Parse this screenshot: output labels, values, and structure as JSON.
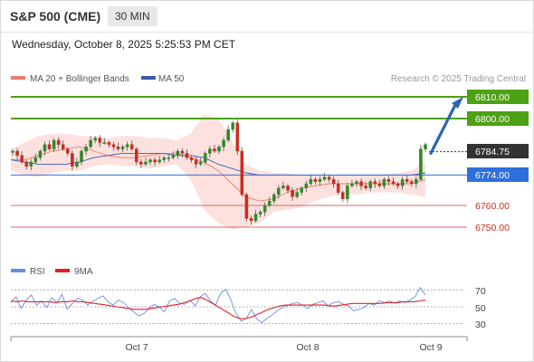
{
  "header": {
    "title": "S&P 500 (CME)",
    "timeframe": "30 MIN",
    "datetime": "Wednesday, October 8, 2025 5:25:53 PM CET"
  },
  "legend": {
    "ma20_bb": "MA 20 + Bollinger Bands",
    "ma50": "MA 50",
    "source": "Research © 2025 Trading Central",
    "rsi": "RSI",
    "rsi_ma": "9MA"
  },
  "colors": {
    "up_candle": "#2f8a2a",
    "down_candle": "#cc2b1d",
    "bollinger_fill": "#fddcd8",
    "ma20": "#e87d6a",
    "ma50": "#3c59a8",
    "resistance": "#4da114",
    "pivot": "#2f6fdc",
    "support": "#e06565",
    "current": "#333333",
    "rsi_line": "#6a8ee0",
    "rsi_ma_line": "#e0202a",
    "arrow": "#2c64b4"
  },
  "chart_data": {
    "type": "candlestick",
    "symbol": "S&P 500 (CME)",
    "timeframe": "30 MIN",
    "x_ticks": [
      "Oct 7",
      "Oct 8",
      "Oct 9"
    ],
    "y_range": [
      6745,
      6815
    ],
    "levels": [
      {
        "label": "6810.00",
        "value": 6810,
        "kind": "resistance"
      },
      {
        "label": "6800.00",
        "value": 6800,
        "kind": "resistance"
      },
      {
        "label": "6784.75",
        "value": 6784.75,
        "kind": "current"
      },
      {
        "label": "6774.00",
        "value": 6774,
        "kind": "pivot"
      },
      {
        "label": "6760.00",
        "value": 6760,
        "kind": "support"
      },
      {
        "label": "6750.00",
        "value": 6750,
        "kind": "support"
      }
    ],
    "price_path": [
      6785,
      6783,
      6780,
      6778,
      6780,
      6782,
      6785,
      6788,
      6786,
      6790,
      6788,
      6786,
      6784,
      6778,
      6780,
      6785,
      6787,
      6790,
      6791,
      6789,
      6789,
      6788,
      6787,
      6786,
      6787,
      6788,
      6786,
      6780,
      6779,
      6780,
      6781,
      6780,
      6781,
      6782,
      6782,
      6783,
      6785,
      6784,
      6782,
      6781,
      6779,
      6780,
      6784,
      6786,
      6785,
      6787,
      6790,
      6795,
      6798,
      6785,
      6765,
      6754,
      6753,
      6756,
      6757,
      6760,
      6762,
      6765,
      6768,
      6769,
      6767,
      6764,
      6766,
      6768,
      6770,
      6772,
      6771,
      6772,
      6773,
      6772,
      6770,
      6766,
      6763,
      6769,
      6770,
      6771,
      6769,
      6768,
      6771,
      6770,
      6769,
      6772,
      6771,
      6770,
      6769,
      6772,
      6771,
      6770,
      6772,
      6786,
      6788
    ],
    "ma20_path": [
      6781,
      6781,
      6783,
      6785,
      6786,
      6787,
      6785,
      6783,
      6782,
      6782,
      6783,
      6784,
      6784,
      6782,
      6780,
      6776,
      6770,
      6764,
      6762,
      6763,
      6766,
      6768,
      6769,
      6770,
      6770,
      6770,
      6770,
      6770,
      6770,
      6770,
      6772
    ],
    "bollinger_upper": [
      6786,
      6789,
      6792,
      6793,
      6793,
      6792,
      6792,
      6791,
      6792,
      6792,
      6791,
      6791,
      6790,
      6793,
      6802,
      6800,
      6790,
      6779,
      6776,
      6775,
      6775,
      6774,
      6774,
      6774,
      6774,
      6774,
      6774,
      6774,
      6775,
      6776,
      6780
    ],
    "bollinger_lower": [
      6776,
      6774,
      6773,
      6775,
      6776,
      6776,
      6778,
      6779,
      6778,
      6778,
      6777,
      6778,
      6779,
      6772,
      6758,
      6752,
      6749,
      6750,
      6752,
      6757,
      6758,
      6759,
      6762,
      6764,
      6765,
      6765,
      6766,
      6766,
      6766,
      6765,
      6764
    ],
    "ma50_path": [
      6781,
      6780,
      6779,
      6779,
      6779,
      6780,
      6782,
      6783,
      6784,
      6784,
      6784,
      6784,
      6783,
      6783,
      6782,
      6779,
      6777,
      6775,
      6774,
      6774,
      6774,
      6774,
      6774,
      6774,
      6774,
      6774,
      6774,
      6774,
      6774,
      6774,
      6775
    ],
    "arrow": {
      "from": 6784,
      "to": 6810
    },
    "rsi": {
      "ticks": [
        70,
        50,
        30
      ],
      "y_range": [
        20,
        80
      ],
      "rsi_path": [
        55,
        62,
        48,
        58,
        64,
        52,
        57,
        49,
        61,
        55,
        65,
        47,
        54,
        60,
        58,
        52,
        56,
        60,
        63,
        56,
        52,
        58,
        55,
        49,
        44,
        39,
        42,
        48,
        53,
        50,
        44,
        57,
        60,
        54,
        53,
        58,
        51,
        62,
        66,
        57,
        52,
        66,
        71,
        58,
        42,
        33,
        36,
        47,
        36,
        31,
        36,
        40,
        45,
        49,
        51,
        54,
        55,
        52,
        48,
        53,
        55,
        57,
        51,
        55,
        56,
        53,
        51,
        45,
        47,
        49,
        54,
        52,
        57,
        55,
        57,
        54,
        57,
        55,
        58,
        62,
        73,
        64
      ],
      "rsi_ma_path": [
        57,
        56,
        57,
        56,
        56,
        56,
        56,
        56,
        55,
        56,
        56,
        57,
        56,
        56,
        55,
        54,
        53,
        52,
        51,
        50,
        49,
        48,
        47,
        47,
        47,
        48,
        49,
        50,
        51,
        52,
        53,
        55,
        57,
        60,
        61,
        58,
        54,
        50,
        46,
        42,
        38,
        36,
        36,
        38,
        41,
        44,
        47,
        49,
        51,
        52,
        52,
        52,
        52,
        52,
        52,
        52,
        52,
        51,
        51,
        52,
        53,
        54,
        54,
        54,
        54,
        54,
        54,
        55,
        55,
        55,
        56,
        56,
        56,
        57,
        58
      ]
    }
  }
}
